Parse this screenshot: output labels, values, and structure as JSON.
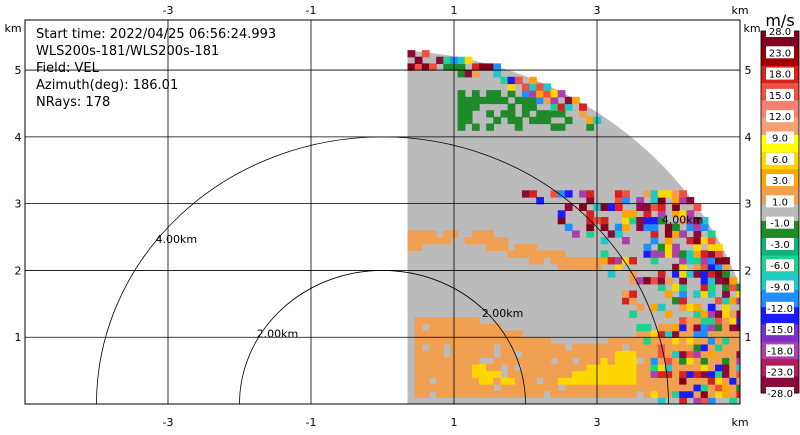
{
  "chart_data": {
    "type": "heatmap",
    "subtype": "radar-ppi",
    "info": {
      "start_time": "Start time: 2022/04/25 06:56:24.993",
      "instrument": "WLS200s-181/WLS200s-181",
      "field": "Field: VEL",
      "azimuth": "Azimuth(deg): 186.01",
      "nrays": "NRays: 178"
    },
    "x_axis": {
      "unit": "km",
      "range": [
        -5.0,
        5.0
      ],
      "ticks": [
        -3,
        -1,
        1,
        3
      ],
      "tick_labels": [
        "-3",
        "-1",
        "1",
        "3"
      ]
    },
    "y_axis": {
      "unit": "km",
      "range": [
        0.0,
        5.75
      ],
      "ticks": [
        1,
        2,
        3,
        4,
        5
      ],
      "tick_labels": [
        "1",
        "2",
        "3",
        "4",
        "5"
      ]
    },
    "grid": true,
    "range_rings": [
      {
        "radius_km": 2.0,
        "label": "2.00km"
      },
      {
        "radius_km": 4.0,
        "label": "4.00km"
      }
    ],
    "data_extent": {
      "x_start_km": 0.35,
      "max_range_km": 5.3,
      "azimuth_coverage_deg": [
        0,
        90
      ]
    },
    "colorbar": {
      "unit": "m/s",
      "colors": [
        "#8b0a3c",
        "#b11c5c",
        "#aa3fb0",
        "#7b2fc9",
        "#1a1aff",
        "#1f8fff",
        "#21c8c8",
        "#1ed18c",
        "#0fb07a",
        "#1f8a2a",
        "#bbbbbb",
        "#f0a050",
        "#ffa500",
        "#ffd700",
        "#ffff00",
        "#f4a070",
        "#f88070",
        "#ef5040",
        "#d72020",
        "#a00000",
        "#800020"
      ],
      "tick_labels": [
        "-28.0",
        "-23.0",
        "-18.0",
        "-15.0",
        "-12.0",
        "-9.0",
        "-6.0",
        "-3.0",
        "-1.0",
        "1.0",
        "3.0",
        "6.0",
        "9.0",
        "12.0",
        "15.0",
        "18.0",
        "23.0",
        "28.0"
      ]
    }
  }
}
